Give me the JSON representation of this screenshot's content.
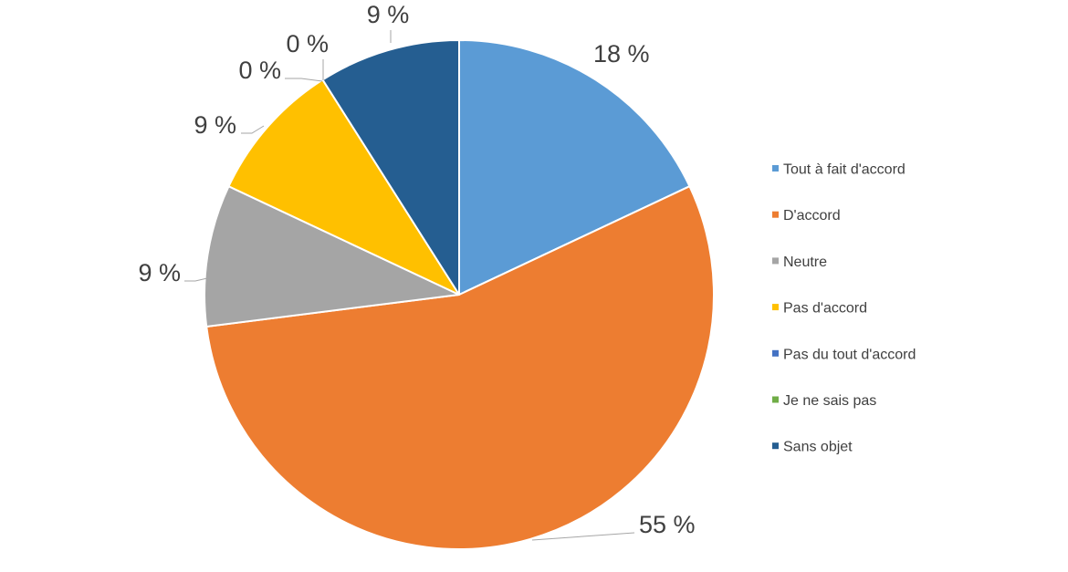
{
  "chart_data": {
    "type": "pie",
    "title": "",
    "legend_position": "right",
    "slices": [
      {
        "label": "Tout à fait d'accord",
        "value": 18,
        "value_label": "18 %",
        "color": "#5b9bd5"
      },
      {
        "label": "D'accord",
        "value": 55,
        "value_label": "55 %",
        "color": "#ed7d31"
      },
      {
        "label": "Neutre",
        "value": 9,
        "value_label": "9 %",
        "color": "#a5a5a5"
      },
      {
        "label": "Pas d'accord",
        "value": 9,
        "value_label": "9 %",
        "color": "#ffc000"
      },
      {
        "label": "Pas du tout d'accord",
        "value": 0,
        "value_label": "0 %",
        "color": "#4472c4"
      },
      {
        "label": "Je ne sais pas",
        "value": 0,
        "value_label": "0 %",
        "color": "#70ad47"
      },
      {
        "label": "Sans objet",
        "value": 9,
        "value_label": "9 %",
        "color": "#255e91"
      }
    ]
  }
}
